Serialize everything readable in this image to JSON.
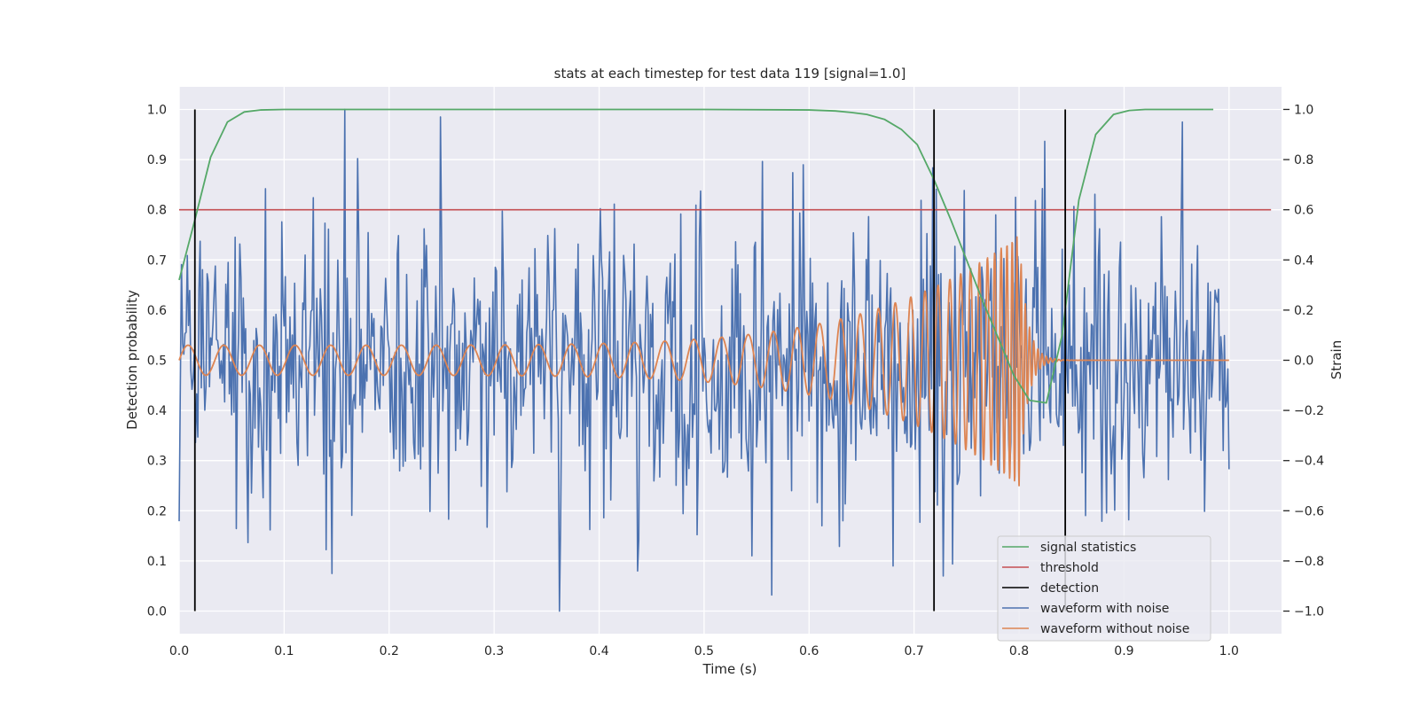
{
  "chart_data": {
    "type": "line",
    "title": "stats at each timestep for test data 119 [signal=1.0]",
    "xlabel": "Time (s)",
    "ylabel_left": "Detection probability",
    "ylabel_right": "Strain",
    "xlim": [
      0.0,
      1.05
    ],
    "ylim_left": [
      -0.045,
      1.045
    ],
    "ylim_right": [
      -1.09,
      1.09
    ],
    "x_ticks": [
      0.0,
      0.1,
      0.2,
      0.3,
      0.4,
      0.5,
      0.6,
      0.7,
      0.8,
      0.9,
      1.0
    ],
    "y_ticks_left": [
      0.0,
      0.1,
      0.2,
      0.3,
      0.4,
      0.5,
      0.6,
      0.7,
      0.8,
      0.9,
      1.0
    ],
    "y_ticks_right": [
      -1.0,
      -0.8,
      -0.6,
      -0.4,
      -0.2,
      0.0,
      0.2,
      0.4,
      0.6,
      0.8,
      1.0
    ],
    "grid": true,
    "legend_position": "lower-right",
    "series": [
      {
        "name": "signal statistics",
        "axis": "left",
        "color": "#55a868",
        "points": [
          [
            0.0,
            0.66
          ],
          [
            0.015,
            0.78
          ],
          [
            0.03,
            0.905
          ],
          [
            0.046,
            0.975
          ],
          [
            0.062,
            0.995
          ],
          [
            0.078,
            0.999
          ],
          [
            0.1,
            1.0
          ],
          [
            0.3,
            1.0
          ],
          [
            0.5,
            1.0
          ],
          [
            0.6,
            0.999
          ],
          [
            0.625,
            0.997
          ],
          [
            0.64,
            0.994
          ],
          [
            0.655,
            0.99
          ],
          [
            0.672,
            0.98
          ],
          [
            0.688,
            0.96
          ],
          [
            0.703,
            0.93
          ],
          [
            0.719,
            0.86
          ],
          [
            0.735,
            0.78
          ],
          [
            0.75,
            0.7
          ],
          [
            0.765,
            0.62
          ],
          [
            0.78,
            0.545
          ],
          [
            0.795,
            0.47
          ],
          [
            0.81,
            0.42
          ],
          [
            0.826,
            0.415
          ],
          [
            0.841,
            0.55
          ],
          [
            0.857,
            0.82
          ],
          [
            0.873,
            0.95
          ],
          [
            0.89,
            0.99
          ],
          [
            0.905,
            0.998
          ],
          [
            0.92,
            1.0
          ],
          [
            0.985,
            1.0
          ]
        ]
      },
      {
        "name": "threshold",
        "axis": "left",
        "color": "#c44e52",
        "points": [
          [
            0.0,
            0.8
          ],
          [
            1.04,
            0.8
          ]
        ]
      },
      {
        "name": "detection",
        "axis": "left",
        "color": "#000000",
        "vlines": [
          0.015,
          0.719,
          0.844
        ],
        "range": [
          0.0,
          1.0
        ]
      },
      {
        "name": "waveform with noise",
        "axis": "right",
        "color": "#4c72b0",
        "x_range": [
          0.0,
          1.0
        ],
        "noise_sigma": 0.3,
        "marked_peaks": [
          [
            0.158,
            1.0
          ],
          [
            0.362,
            -1.0
          ],
          [
            0.249,
            0.97
          ],
          [
            0.955,
            0.95
          ],
          [
            0.145,
            -0.85
          ],
          [
            0.437,
            -0.84
          ],
          [
            0.68,
            -0.82
          ],
          [
            0.728,
            -0.86
          ]
        ]
      },
      {
        "name": "waveform without noise",
        "axis": "right",
        "color": "#dd8452",
        "x_range": [
          0.0,
          1.0
        ],
        "chirp": {
          "start_amplitude": 0.06,
          "peak_amplitude": 0.5,
          "peak_time": 0.8,
          "start_period": 0.034,
          "merger_period": 0.004,
          "ringdown_end": 0.83
        }
      }
    ]
  }
}
